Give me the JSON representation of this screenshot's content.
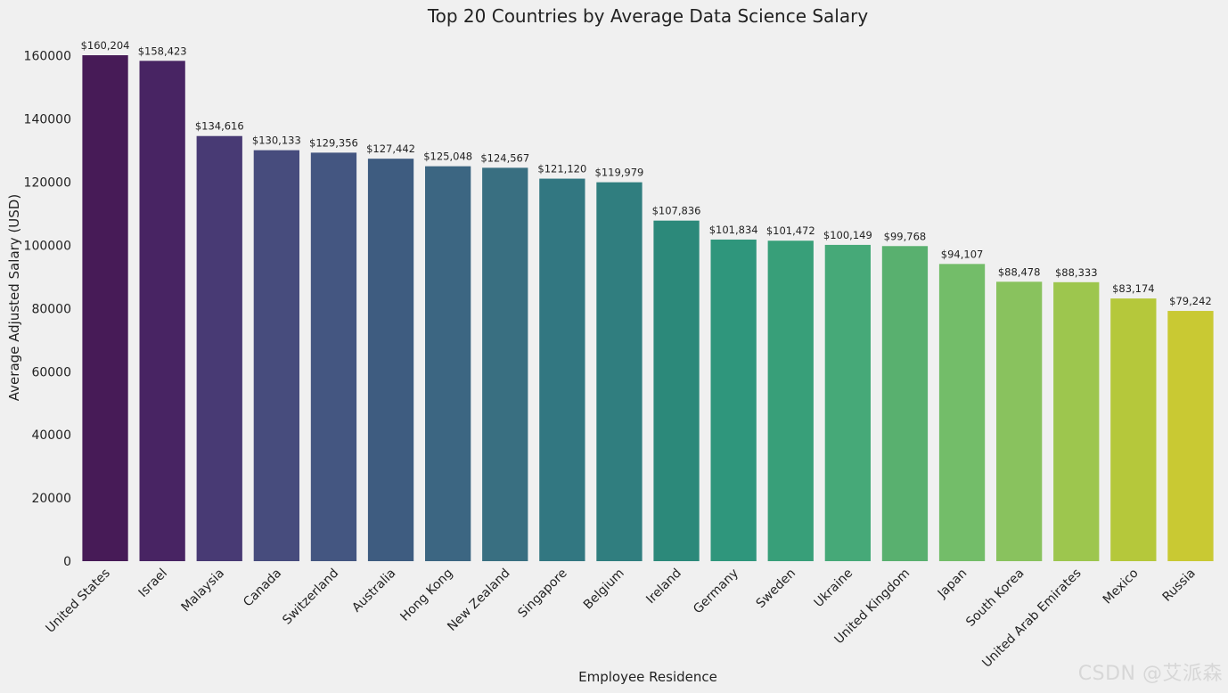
{
  "chart_data": {
    "type": "bar",
    "title": "Top 20 Countries by Average Data Science Salary",
    "xlabel": "Employee Residence",
    "ylabel": "Average Adjusted Salary (USD)",
    "ylim": [
      0,
      160204
    ],
    "yticks": [
      0,
      20000,
      40000,
      60000,
      80000,
      100000,
      120000,
      140000,
      160000
    ],
    "grid": false,
    "categories": [
      "United States",
      "Israel",
      "Malaysia",
      "Canada",
      "Switzerland",
      "Australia",
      "Hong Kong",
      "New Zealand",
      "Singapore",
      "Belgium",
      "Ireland",
      "Germany",
      "Sweden",
      "Ukraine",
      "United Kingdom",
      "Japan",
      "South Korea",
      "United Arab Emirates",
      "Mexico",
      "Russia"
    ],
    "values": [
      160204,
      158423,
      134616,
      130133,
      129356,
      127442,
      125048,
      124567,
      121120,
      119979,
      107836,
      101834,
      101472,
      100149,
      99768,
      94107,
      88478,
      88333,
      83174,
      79242
    ],
    "value_labels": [
      "$160,204",
      "$158,423",
      "$134,616",
      "$130,133",
      "$129,356",
      "$127,442",
      "$125,048",
      "$124,567",
      "$121,120",
      "$119,979",
      "$107,836",
      "$101,834",
      "$101,472",
      "$100,149",
      "$99,768",
      "$94,107",
      "$88,478",
      "$88,333",
      "$83,174",
      "$79,242"
    ],
    "colors": [
      "#471b57",
      "#482463",
      "#483a74",
      "#474c7d",
      "#445681",
      "#3e5c80",
      "#3c6682",
      "#396f81",
      "#327781",
      "#307e7f",
      "#2c897a",
      "#2f967c",
      "#389f79",
      "#46a978",
      "#59b06f",
      "#73bd69",
      "#89c25e",
      "#9dc64e",
      "#b5c83b",
      "#c9c933"
    ]
  },
  "watermark": "CSDN @艾派森"
}
